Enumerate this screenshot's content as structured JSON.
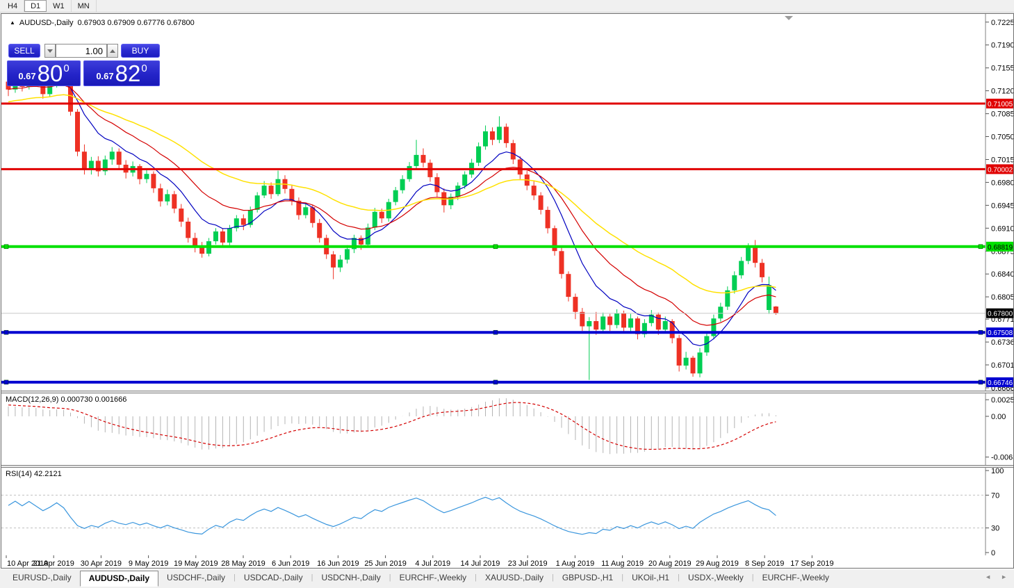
{
  "toolbar": {
    "timeframes": [
      "H4",
      "D1",
      "W1",
      "MN"
    ],
    "active": "D1"
  },
  "title": {
    "marker": "▲",
    "symbol": "AUDUSD-,Daily",
    "ohlc": "0.67903 0.67909 0.67776 0.67800"
  },
  "trade_panel": {
    "sell_label": "SELL",
    "buy_label": "BUY",
    "volume": "1.00",
    "sell_price": {
      "prefix": "0.67",
      "big": "80",
      "sup": "0"
    },
    "buy_price": {
      "prefix": "0.67",
      "big": "82",
      "sup": "0"
    }
  },
  "macd": {
    "name": "MACD(12,26,9)",
    "value_main": "0.000730",
    "value_signal": "0.001666"
  },
  "rsi": {
    "name": "RSI(14)",
    "value": "42.2121"
  },
  "tabs": {
    "items": [
      "EURUSD-,Daily",
      "AUDUSD-,Daily",
      "USDCHF-,Daily",
      "USDCAD-,Daily",
      "USDCNH-,Daily",
      "EURCHF-,Weekly",
      "XAUUSD-,Daily",
      "GBPUSD-,H1",
      "UKOil-,H1",
      "USDX-,Weekly",
      "EURCHF-,Weekly"
    ],
    "active_index": 1,
    "scroll_left": "◄",
    "scroll_right": "►"
  },
  "chart_data": {
    "type": "candlestick",
    "symbol": "AUDUSD",
    "period": "Daily",
    "style": {
      "bull": "#00ce53",
      "bear": "#ee3124",
      "bid_line": "#c8c8c8",
      "axis_line": "#808080",
      "rsi_line": "#3a96dd",
      "rsi_level": "#c0c0c0",
      "macd_hist": "#b4b4b4",
      "macd_signal": "#d40000",
      "shift_marker": "#9c9c9c"
    },
    "ma_lines": [
      {
        "name": "fast-ma",
        "period": 9,
        "color": "#0000c0",
        "width": 1.2
      },
      {
        "name": "mid-ma",
        "period": 18,
        "color": "#d40000",
        "width": 1.2
      },
      {
        "name": "slow-ma",
        "period": 36,
        "color": "#ffe100",
        "width": 1.5
      }
    ],
    "price_axis": [
      0.7225,
      0.719,
      0.7155,
      0.712,
      0.7085,
      0.705,
      0.7015,
      0.698,
      0.6945,
      0.691,
      0.6875,
      0.684,
      0.6805,
      0.6771,
      0.6736,
      0.6701,
      0.6666
    ],
    "hlines": [
      {
        "price": 0.71005,
        "color": "#e00000",
        "width": 3,
        "label_fg": "#ffffff",
        "handles": false
      },
      {
        "price": 0.70002,
        "color": "#e00000",
        "width": 3,
        "label_fg": "#ffffff",
        "handles": false
      },
      {
        "price": 0.68819,
        "color": "#00e000",
        "width": 4,
        "label_fg": "#000000",
        "handles": true
      },
      {
        "price": 0.67508,
        "color": "#0000d0",
        "width": 4,
        "label_fg": "#ffffff",
        "handles": true
      },
      {
        "price": 0.66746,
        "color": "#0000d0",
        "width": 4,
        "label_fg": "#ffffff",
        "handles": true
      }
    ],
    "bid": {
      "price": 0.678,
      "label_bg": "#000000",
      "label_fg": "#ffffff"
    },
    "macd_axis": [
      {
        "v": 0.002574,
        "t": "0.002574"
      },
      {
        "v": 0,
        "t": "0.00"
      },
      {
        "v": -0.00632,
        "t": "-0.00632"
      }
    ],
    "rsi_axis": [
      {
        "v": 100,
        "t": "100"
      },
      {
        "v": 70,
        "t": "70"
      },
      {
        "v": 30,
        "t": "30"
      },
      {
        "v": 0,
        "t": "0"
      }
    ],
    "rsi_levels": [
      70,
      30
    ],
    "dates": [
      "10 Apr 2019",
      "21 Apr 2019",
      "30 Apr 2019",
      "9 May 2019",
      "19 May 2019",
      "28 May 2019",
      "6 Jun 2019",
      "16 Jun 2019",
      "25 Jun 2019",
      "4 Jul 2019",
      "14 Jul 2019",
      "23 Jul 2019",
      "1 Aug 2019",
      "11 Aug 2019",
      "20 Aug 2019",
      "29 Aug 2019",
      "8 Sep 2019",
      "17 Sep 2019"
    ],
    "preroll_closes": [
      0.704,
      0.7052,
      0.7046,
      0.706,
      0.7071,
      0.7065,
      0.7078,
      0.709,
      0.7083,
      0.7095,
      0.7104,
      0.7096,
      0.7108,
      0.7118,
      0.711,
      0.7102,
      0.7112,
      0.7123,
      0.7115,
      0.7126,
      0.7134,
      0.7127,
      0.7119,
      0.713,
      0.7138,
      0.7131,
      0.714,
      0.7133,
      0.7144,
      0.7136
    ],
    "candles": [
      [
        0.7134,
        0.7148,
        0.7112,
        0.7122
      ],
      [
        0.7122,
        0.7144,
        0.7117,
        0.7139
      ],
      [
        0.7139,
        0.7145,
        0.7119,
        0.7126
      ],
      [
        0.7126,
        0.715,
        0.7122,
        0.7145
      ],
      [
        0.7145,
        0.7153,
        0.7126,
        0.7131
      ],
      [
        0.7131,
        0.7138,
        0.7108,
        0.7115
      ],
      [
        0.7115,
        0.7135,
        0.711,
        0.7129
      ],
      [
        0.7129,
        0.7156,
        0.7125,
        0.715
      ],
      [
        0.715,
        0.7157,
        0.7127,
        0.7132
      ],
      [
        0.7132,
        0.7136,
        0.7082,
        0.7088
      ],
      [
        0.7088,
        0.7092,
        0.702,
        0.7027
      ],
      [
        0.7027,
        0.7038,
        0.6992,
        0.7
      ],
      [
        0.7,
        0.7019,
        0.6992,
        0.7013
      ],
      [
        0.7013,
        0.702,
        0.6989,
        0.6997
      ],
      [
        0.6997,
        0.7021,
        0.6991,
        0.7015
      ],
      [
        0.7015,
        0.7034,
        0.7007,
        0.7027
      ],
      [
        0.7027,
        0.7032,
        0.7001,
        0.7007
      ],
      [
        0.7007,
        0.7014,
        0.6986,
        0.6995
      ],
      [
        0.6995,
        0.7012,
        0.6989,
        0.7005
      ],
      [
        0.7005,
        0.7008,
        0.6977,
        0.6985
      ],
      [
        0.6985,
        0.7,
        0.6979,
        0.6993
      ],
      [
        0.6993,
        0.6997,
        0.6964,
        0.6971
      ],
      [
        0.6971,
        0.6978,
        0.6943,
        0.6951
      ],
      [
        0.6951,
        0.6969,
        0.6945,
        0.6962
      ],
      [
        0.6962,
        0.6967,
        0.6933,
        0.694
      ],
      [
        0.694,
        0.6947,
        0.6912,
        0.692
      ],
      [
        0.692,
        0.6926,
        0.6888,
        0.6895
      ],
      [
        0.6895,
        0.6903,
        0.6873,
        0.688
      ],
      [
        0.688,
        0.6889,
        0.6865,
        0.6871
      ],
      [
        0.6871,
        0.6895,
        0.6867,
        0.689
      ],
      [
        0.689,
        0.691,
        0.6885,
        0.6905
      ],
      [
        0.6905,
        0.6909,
        0.6881,
        0.6888
      ],
      [
        0.6888,
        0.6915,
        0.6884,
        0.691
      ],
      [
        0.691,
        0.693,
        0.6905,
        0.6925
      ],
      [
        0.6925,
        0.6931,
        0.6907,
        0.6915
      ],
      [
        0.6915,
        0.6943,
        0.6911,
        0.6938
      ],
      [
        0.6938,
        0.6965,
        0.6934,
        0.696
      ],
      [
        0.696,
        0.6982,
        0.6956,
        0.6975
      ],
      [
        0.6975,
        0.698,
        0.6955,
        0.6962
      ],
      [
        0.6962,
        0.6998,
        0.6959,
        0.6985
      ],
      [
        0.6985,
        0.6991,
        0.6963,
        0.697
      ],
      [
        0.697,
        0.6976,
        0.6945,
        0.6952
      ],
      [
        0.6952,
        0.6957,
        0.6923,
        0.693
      ],
      [
        0.693,
        0.6949,
        0.6925,
        0.6942
      ],
      [
        0.6942,
        0.6946,
        0.6911,
        0.6918
      ],
      [
        0.6918,
        0.6924,
        0.6888,
        0.6895
      ],
      [
        0.6895,
        0.69,
        0.6863,
        0.687
      ],
      [
        0.687,
        0.6875,
        0.6832,
        0.685
      ],
      [
        0.685,
        0.6869,
        0.6843,
        0.6862
      ],
      [
        0.6862,
        0.6884,
        0.6856,
        0.6878
      ],
      [
        0.6878,
        0.69,
        0.6872,
        0.6895
      ],
      [
        0.6895,
        0.6899,
        0.6877,
        0.6885
      ],
      [
        0.6885,
        0.6917,
        0.6881,
        0.6911
      ],
      [
        0.6911,
        0.6941,
        0.6907,
        0.6935
      ],
      [
        0.6935,
        0.694,
        0.6918,
        0.6925
      ],
      [
        0.6925,
        0.6955,
        0.692,
        0.695
      ],
      [
        0.695,
        0.6973,
        0.6945,
        0.6968
      ],
      [
        0.6968,
        0.6991,
        0.6963,
        0.6985
      ],
      [
        0.6985,
        0.7011,
        0.6981,
        0.7005
      ],
      [
        0.7005,
        0.7045,
        0.7,
        0.7022
      ],
      [
        0.7022,
        0.7032,
        0.7003,
        0.701
      ],
      [
        0.701,
        0.7015,
        0.6981,
        0.6988
      ],
      [
        0.6988,
        0.6994,
        0.6958,
        0.6965
      ],
      [
        0.6965,
        0.6971,
        0.6934,
        0.6945
      ],
      [
        0.6945,
        0.6963,
        0.6939,
        0.6958
      ],
      [
        0.6958,
        0.698,
        0.6953,
        0.6975
      ],
      [
        0.6975,
        0.6997,
        0.697,
        0.6992
      ],
      [
        0.6992,
        0.7016,
        0.6987,
        0.701
      ],
      [
        0.701,
        0.7041,
        0.7005,
        0.7035
      ],
      [
        0.7035,
        0.7067,
        0.703,
        0.7058
      ],
      [
        0.7058,
        0.7064,
        0.7037,
        0.7045
      ],
      [
        0.7045,
        0.7081,
        0.704,
        0.7065
      ],
      [
        0.7065,
        0.707,
        0.7033,
        0.704
      ],
      [
        0.704,
        0.7045,
        0.7008,
        0.7015
      ],
      [
        0.7015,
        0.702,
        0.6985,
        0.6992
      ],
      [
        0.6992,
        0.6998,
        0.6968,
        0.6975
      ],
      [
        0.6975,
        0.6982,
        0.6953,
        0.696
      ],
      [
        0.696,
        0.6965,
        0.6931,
        0.6938
      ],
      [
        0.6938,
        0.6943,
        0.6902,
        0.691
      ],
      [
        0.691,
        0.6914,
        0.6868,
        0.6875
      ],
      [
        0.6875,
        0.688,
        0.6833,
        0.684
      ],
      [
        0.684,
        0.6844,
        0.6798,
        0.6805
      ],
      [
        0.6805,
        0.681,
        0.6771,
        0.6782
      ],
      [
        0.6782,
        0.6788,
        0.6753,
        0.676
      ],
      [
        0.676,
        0.6774,
        0.6678,
        0.6768
      ],
      [
        0.6768,
        0.6782,
        0.6747,
        0.6755
      ],
      [
        0.6755,
        0.6781,
        0.675,
        0.6775
      ],
      [
        0.6775,
        0.6779,
        0.6753,
        0.6762
      ],
      [
        0.6762,
        0.6786,
        0.6757,
        0.678
      ],
      [
        0.678,
        0.6784,
        0.6749,
        0.6758
      ],
      [
        0.6758,
        0.6779,
        0.6752,
        0.6772
      ],
      [
        0.6772,
        0.6775,
        0.674,
        0.6748
      ],
      [
        0.6748,
        0.6771,
        0.6743,
        0.6765
      ],
      [
        0.6765,
        0.6785,
        0.676,
        0.6778
      ],
      [
        0.6778,
        0.6781,
        0.6747,
        0.6755
      ],
      [
        0.6755,
        0.6775,
        0.6749,
        0.6768
      ],
      [
        0.6768,
        0.6771,
        0.6734,
        0.6742
      ],
      [
        0.6742,
        0.6747,
        0.6691,
        0.67
      ],
      [
        0.67,
        0.6721,
        0.6694,
        0.6712
      ],
      [
        0.6712,
        0.6715,
        0.6683,
        0.6688
      ],
      [
        0.6688,
        0.6727,
        0.6682,
        0.672
      ],
      [
        0.672,
        0.6751,
        0.6715,
        0.6745
      ],
      [
        0.6745,
        0.6778,
        0.674,
        0.6772
      ],
      [
        0.6772,
        0.6796,
        0.6767,
        0.679
      ],
      [
        0.679,
        0.6821,
        0.6785,
        0.6815
      ],
      [
        0.6815,
        0.6844,
        0.681,
        0.6838
      ],
      [
        0.6838,
        0.6866,
        0.6833,
        0.686
      ],
      [
        0.686,
        0.6887,
        0.6855,
        0.6881
      ],
      [
        0.6881,
        0.6892,
        0.685,
        0.6857
      ],
      [
        0.6857,
        0.6863,
        0.6827,
        0.6835
      ],
      [
        0.6785,
        0.6836,
        0.6779,
        0.6823
      ],
      [
        0.67903,
        0.67909,
        0.67776,
        0.678
      ]
    ]
  }
}
